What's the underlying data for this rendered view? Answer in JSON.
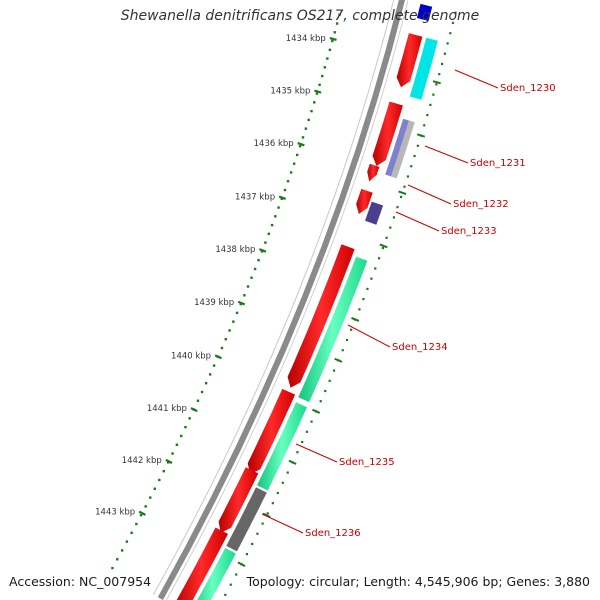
{
  "title": "Shewanella denitrificans OS217, complete genome",
  "footer": {
    "accession": "Accession: NC_007954",
    "summary": "Topology: circular; Length: 4,545,906 bp; Genes: 3,880"
  },
  "ruler": {
    "unit": "kbp",
    "labels": [
      "1434 kbp",
      "1435 kbp",
      "1436 kbp",
      "1437 kbp",
      "1438 kbp",
      "1439 kbp",
      "1440 kbp",
      "1441 kbp",
      "1442 kbp",
      "1443 kbp"
    ]
  },
  "genes": [
    {
      "label": "Sden_1230",
      "feature_color": "#00e5e5"
    },
    {
      "label": "Sden_1231",
      "feature_color": "#8080d0"
    },
    {
      "label": "Sden_1232",
      "feature_color": "#ff0000"
    },
    {
      "label": "Sden_1233",
      "feature_color": "#4a3f8f"
    },
    {
      "label": "Sden_1234",
      "feature_color": "#2ee89a"
    },
    {
      "label": "Sden_1235",
      "feature_color": "#2ee89a"
    },
    {
      "label": "Sden_1236",
      "feature_color": "#666666"
    }
  ],
  "colors": {
    "cds": "#ff0000",
    "label_text": "#cc0000",
    "ruler_text": "#333333",
    "ruler_ticks": "#1a7a1a",
    "backbone": "#8a8a8a",
    "cog_teal": "#2ee89a",
    "cog_cyan": "#00e5e5",
    "cog_purple": "#8080d0",
    "cog_dark": "#4a3f8f",
    "cog_gray": "#666666",
    "top_feature": "#0000cc"
  }
}
